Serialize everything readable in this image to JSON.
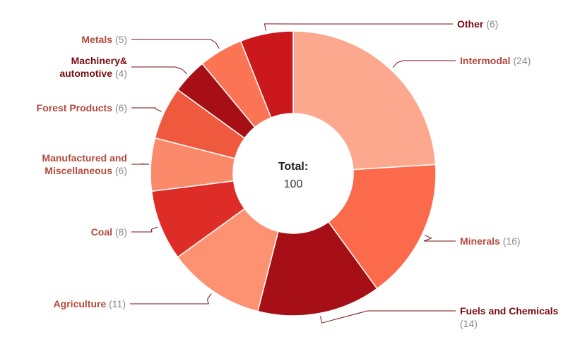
{
  "chart_data": {
    "type": "pie",
    "variant": "donut",
    "center": {
      "label": "Total:",
      "value": "100"
    },
    "slices": [
      {
        "label": "Intermodal",
        "value": 24,
        "color": "#fca88e",
        "label_color": "#b24a3c"
      },
      {
        "label": "Minerals",
        "value": 16,
        "color": "#fb6a4a",
        "label_color": "#b24a3c"
      },
      {
        "label": "Fuels and Chemicals",
        "value": 14,
        "color": "#a50f15",
        "label_color": "#7a0c10"
      },
      {
        "label": "Agriculture",
        "value": 11,
        "color": "#fc9272",
        "label_color": "#b24a3c"
      },
      {
        "label": "Coal",
        "value": 8,
        "color": "#de2d26",
        "label_color": "#b24a3c"
      },
      {
        "label": "Manufactured and Miscellaneous",
        "lines": [
          "Manufactured and",
          "Miscellaneous"
        ],
        "value": 6,
        "color": "#fb8a6b",
        "label_color": "#b24a3c"
      },
      {
        "label": "Forest Products",
        "value": 6,
        "color": "#ef5a3f",
        "label_color": "#b24a3c"
      },
      {
        "label": "Machinery& automotive",
        "lines": [
          "Machinery&",
          "automotive"
        ],
        "value": 4,
        "color": "#a50f15",
        "label_color": "#7a0c10"
      },
      {
        "label": "Metals",
        "value": 5,
        "color": "#fb7555",
        "label_color": "#b24a3c"
      },
      {
        "label": "Other",
        "value": 6,
        "color": "#cb181d",
        "label_color": "#7a0c10"
      }
    ]
  }
}
